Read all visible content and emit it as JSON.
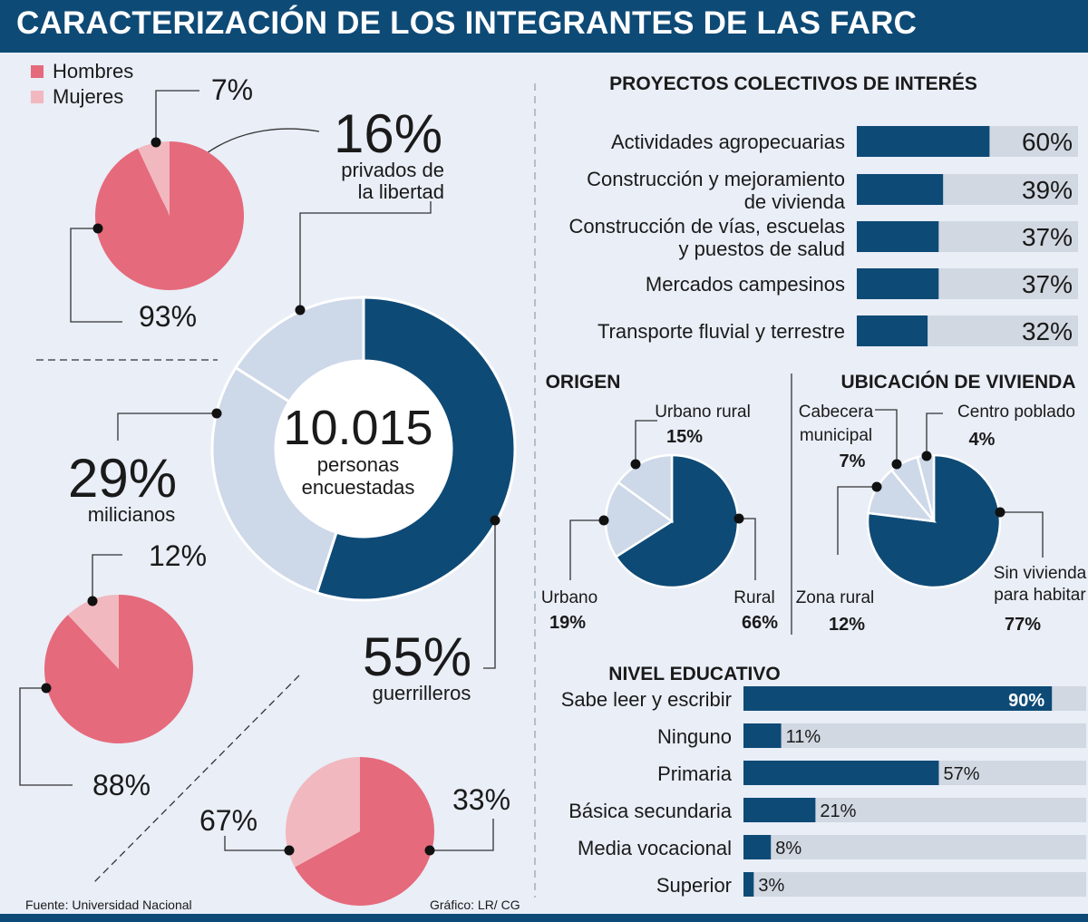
{
  "header": {
    "title": "CARACTERIZACIÓN DE LOS INTEGRANTES DE LAS FARC"
  },
  "colors": {
    "navy": "#0e4a76",
    "light_blue": "#cdd8e9",
    "bar_bg": "#d1d8e2",
    "male": "#e56a7b",
    "female": "#f2b8bf",
    "background": "#e9eef7"
  },
  "legend": {
    "male": "Hombres",
    "female": "Mujeres"
  },
  "footer": {
    "source": "Fuente: Universidad Nacional",
    "credit": "Gráfico: LR/ CG"
  },
  "chart_data": [
    {
      "type": "pie",
      "id": "composition",
      "center_value": "10.015",
      "center_text": [
        "personas",
        "encuestadas"
      ],
      "slices": [
        {
          "label": "guerrilleros",
          "value": 55,
          "display": "55%"
        },
        {
          "label": "milicianos",
          "value": 29,
          "display": "29%"
        },
        {
          "label": "privados de la libertad",
          "value": 16,
          "display": "16%",
          "label_lines": [
            "privados de",
            "la libertad"
          ]
        }
      ]
    },
    {
      "type": "pie",
      "id": "gender-privados",
      "slices": [
        {
          "label": "Hombres",
          "value": 93,
          "display": "93%"
        },
        {
          "label": "Mujeres",
          "value": 7,
          "display": "7%"
        }
      ]
    },
    {
      "type": "pie",
      "id": "gender-milicianos",
      "slices": [
        {
          "label": "Hombres",
          "value": 88,
          "display": "88%"
        },
        {
          "label": "Mujeres",
          "value": 12,
          "display": "12%"
        }
      ]
    },
    {
      "type": "pie",
      "id": "gender-guerrilleros",
      "slices": [
        {
          "label": "Hombres",
          "value": 67,
          "display": "67%"
        },
        {
          "label": "Mujeres",
          "value": 33,
          "display": "33%"
        }
      ]
    },
    {
      "type": "bar",
      "id": "proyectos",
      "title": "PROYECTOS COLECTIVOS DE INTERÉS",
      "xlim": [
        0,
        100
      ],
      "categories": [
        [
          "Actividades agropecuarias"
        ],
        [
          "Construcción y mejoramiento",
          "de vivienda"
        ],
        [
          "Construcción de vías, escuelas",
          "y puestos de salud"
        ],
        [
          "Mercados campesinos"
        ],
        [
          "Transporte fluvial y terrestre"
        ]
      ],
      "values": [
        60,
        39,
        37,
        37,
        32
      ],
      "labels": [
        "60%",
        "39%",
        "37%",
        "37%",
        "32%"
      ]
    },
    {
      "type": "pie",
      "id": "origen",
      "title": "ORIGEN",
      "slices": [
        {
          "label": "Rural",
          "value": 66,
          "display": "66%"
        },
        {
          "label": "Urbano",
          "value": 19,
          "display": "19%"
        },
        {
          "label": "Urbano rural",
          "value": 15,
          "display": "15%"
        }
      ]
    },
    {
      "type": "pie",
      "id": "vivienda",
      "title": "UBICACIÓN DE VIVIENDA",
      "slices": [
        {
          "label": "Sin vivienda para habitar",
          "value": 77,
          "display": "77%",
          "label_lines": [
            "Sin vivienda",
            "para habitar"
          ]
        },
        {
          "label": "Zona rural",
          "value": 12,
          "display": "12%",
          "label_lines": [
            "Zona rural"
          ]
        },
        {
          "label": "Cabecera municipal",
          "value": 7,
          "display": "7%",
          "label_lines": [
            "Cabecera",
            "municipal"
          ]
        },
        {
          "label": "Centro poblado",
          "value": 4,
          "display": "4%",
          "label_lines": [
            "Centro poblado"
          ]
        }
      ]
    },
    {
      "type": "bar",
      "id": "educacion",
      "title": "NIVEL EDUCATIVO",
      "xlim": [
        0,
        100
      ],
      "categories": [
        [
          "Sabe leer y escribir"
        ],
        [
          "Ninguno"
        ],
        [
          "Primaria"
        ],
        [
          "Básica secundaria"
        ],
        [
          "Media vocacional"
        ],
        [
          "Superior"
        ]
      ],
      "values": [
        90,
        11,
        57,
        21,
        8,
        3
      ],
      "labels": [
        "90%",
        "11%",
        "57%",
        "21%",
        "8%",
        "3%"
      ]
    }
  ]
}
